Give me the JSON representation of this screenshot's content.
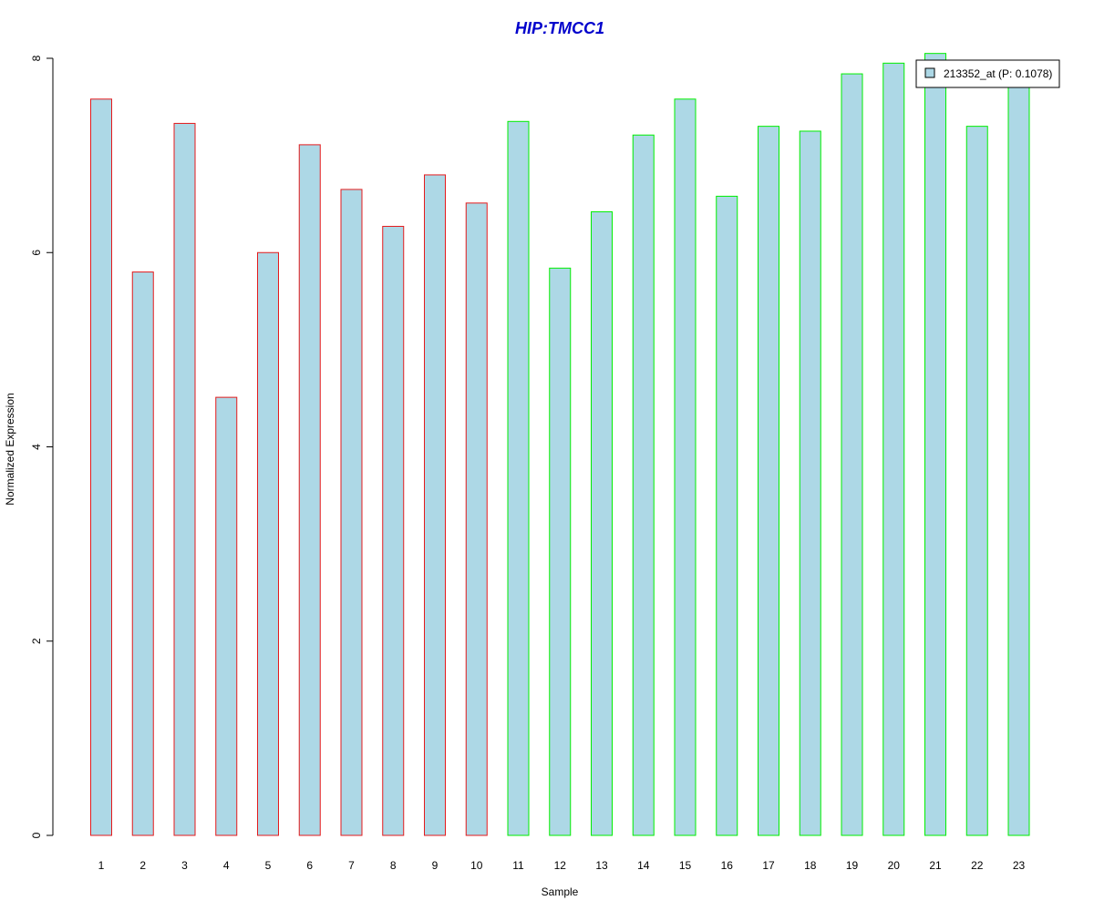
{
  "chart_data": {
    "type": "bar",
    "title": "HIP:TMCC1",
    "xlabel": "Sample",
    "ylabel": "Normalized Expression",
    "ylim": [
      0,
      8
    ],
    "yticks": [
      0,
      2,
      4,
      6,
      8
    ],
    "grid": false,
    "legend_position": "top-right",
    "categories": [
      "1",
      "2",
      "3",
      "4",
      "5",
      "6",
      "7",
      "8",
      "9",
      "10",
      "11",
      "12",
      "13",
      "14",
      "15",
      "16",
      "17",
      "18",
      "19",
      "20",
      "21",
      "22",
      "23"
    ],
    "series": [
      {
        "name": "213352_at (P: 0.1078)",
        "values": [
          7.58,
          5.8,
          7.33,
          4.51,
          6.0,
          7.11,
          6.65,
          6.27,
          6.8,
          6.51,
          7.35,
          5.84,
          6.42,
          7.21,
          7.58,
          6.58,
          7.3,
          7.25,
          7.84,
          7.95,
          8.05,
          7.3,
          7.7
        ]
      }
    ],
    "group_border_colors": [
      "#e41a1c",
      "#e41a1c",
      "#e41a1c",
      "#e41a1c",
      "#e41a1c",
      "#e41a1c",
      "#e41a1c",
      "#e41a1c",
      "#e41a1c",
      "#e41a1c",
      "#00ee00",
      "#00ee00",
      "#00ee00",
      "#00ee00",
      "#00ee00",
      "#00ee00",
      "#00ee00",
      "#00ee00",
      "#00ee00",
      "#00ee00",
      "#00ee00",
      "#00ee00",
      "#00ee00"
    ],
    "colors": {
      "bar_fill": "#add8e6",
      "title": "#0000cc",
      "legend_border": "#000000"
    }
  }
}
